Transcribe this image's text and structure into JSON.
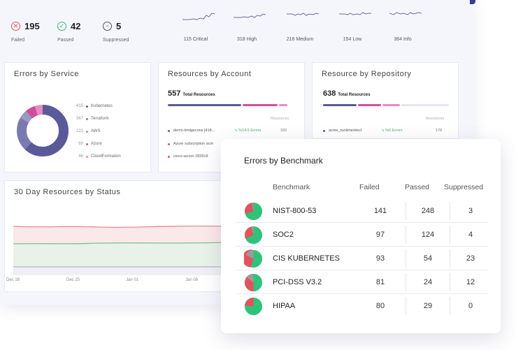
{
  "stats": [
    {
      "value": "195",
      "label": "Failed",
      "icon": "x-circle-icon",
      "color": "#e2545d"
    },
    {
      "value": "42",
      "label": "Passed",
      "icon": "check-circle-icon",
      "color": "#3db36b"
    },
    {
      "value": "5",
      "label": "Suppressed",
      "icon": "minus-circle-icon",
      "color": "#555555"
    }
  ],
  "severities": [
    {
      "label": "115 Critical"
    },
    {
      "label": "318 High"
    },
    {
      "label": "216 Medium"
    },
    {
      "label": "154 Low"
    },
    {
      "label": "364 Info"
    }
  ],
  "errors_by_service": {
    "title": "Errors by Service",
    "items": [
      {
        "count": "415",
        "name": "Kubernetes",
        "color": "#5a5a9a"
      },
      {
        "count": "367",
        "name": "Terraform",
        "color": "#7a7ab0"
      },
      {
        "count": "223",
        "name": "AWS",
        "color": "#9a9ac4"
      },
      {
        "count": "69",
        "name": "Azure",
        "color": "#d14d9c"
      },
      {
        "count": "46",
        "name": "CloudFormation",
        "color": "#e58cc0"
      }
    ]
  },
  "resources_by_account": {
    "title": "Resources by Account",
    "total": "557",
    "total_label": "Total Resources",
    "column_label": "Resources",
    "rows": [
      {
        "name": "demo-bridgecrew [418...",
        "errors": "↘ %14.6 Errors",
        "count": "332",
        "color": "#5a5a9a"
      },
      {
        "name": "Azure subscription acm",
        "errors": "",
        "count": "",
        "color": "#d14d9c"
      },
      {
        "name": "cisco-sector-283918",
        "errors": "",
        "count": "",
        "color": "#d14d9c"
      }
    ]
  },
  "resource_by_repository": {
    "title": "Resource by Repository",
    "total": "638",
    "total_label": "Total Resources",
    "column_label": "Resources",
    "rows": [
      {
        "name": "acme_runtime/eks1",
        "errors": "↘ %0 Errors",
        "count": "178",
        "color": "#5a5a9a"
      }
    ]
  },
  "status_chart": {
    "title": "30 Day Resources by Status",
    "x_labels": [
      "Dec 18",
      "Dec 25",
      "Jan 01",
      "Jan 08"
    ]
  },
  "benchmark": {
    "title": "Errors by Benchmark",
    "headers": {
      "benchmark": "Benchmark",
      "failed": "Failed",
      "passed": "Passed",
      "suppressed": "Suppressed"
    },
    "rows": [
      {
        "name": "NIST-800-53",
        "failed": "141",
        "passed": "248",
        "suppressed": "3"
      },
      {
        "name": "SOC2",
        "failed": "97",
        "passed": "124",
        "suppressed": "4"
      },
      {
        "name": "CIS KUBERNETES",
        "failed": "93",
        "passed": "54",
        "suppressed": "23"
      },
      {
        "name": "PCI-DSS V3.2",
        "failed": "81",
        "passed": "24",
        "suppressed": "12"
      },
      {
        "name": "HIPAA",
        "failed": "80",
        "passed": "29",
        "suppressed": "0"
      }
    ]
  },
  "colors": {
    "failed": "#e2545d",
    "passed": "#3db36b",
    "suppressed": "#9a9a9a",
    "primary": "#5a5a9a",
    "accent": "#d14d9c"
  }
}
